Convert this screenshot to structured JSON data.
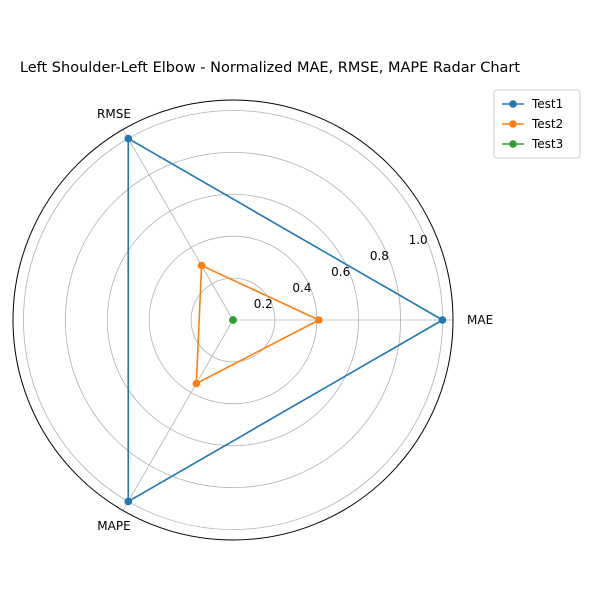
{
  "chart_data": {
    "type": "radar",
    "title": "Left Shoulder-Left Elbow - Normalized MAE, RMSE, MAPE Radar Chart",
    "axes": [
      "MAE",
      "RMSE",
      "MAPE"
    ],
    "radial_ticks": [
      "0.2",
      "0.4",
      "0.6",
      "0.8",
      "1.0"
    ],
    "radial_range": [
      0,
      1.05
    ],
    "grid": true,
    "legend_position": "top-right",
    "series": [
      {
        "name": "Test1",
        "values": [
          1.0,
          1.0,
          1.0
        ],
        "color": "#1f77b4"
      },
      {
        "name": "Test2",
        "values": [
          0.41,
          0.3,
          0.35
        ],
        "color": "#ff7f0e"
      },
      {
        "name": "Test3",
        "values": [
          0.0,
          0.0,
          0.0
        ],
        "color": "#2ca02c"
      }
    ]
  }
}
